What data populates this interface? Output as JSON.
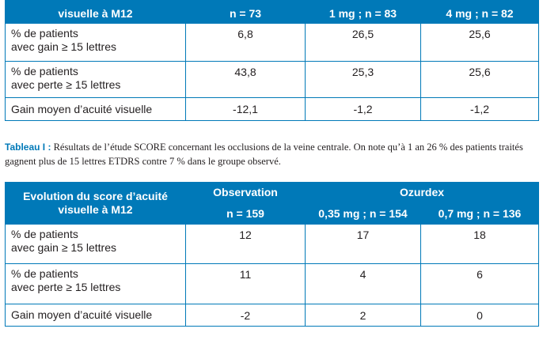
{
  "table1": {
    "header_label": "visuelle à M12",
    "n_cols": [
      "n = 73",
      "1 mg ; n = 83",
      "4 mg ; n = 82"
    ],
    "rows": [
      {
        "label1": "% de patients",
        "label2": "avec gain ≥ 15 lettres",
        "v": [
          "6,8",
          "26,5",
          "25,6"
        ]
      },
      {
        "label1": "% de patients",
        "label2": "avec perte ≥ 15 lettres",
        "v": [
          "43,8",
          "25,3",
          "25,6"
        ]
      },
      {
        "label1": "Gain moyen d’acuité visuelle",
        "v": [
          "-12,1",
          "-1,2",
          "-1,2"
        ]
      }
    ]
  },
  "caption": {
    "label": "Tableau I :",
    "text": "Résultats de l’étude SCORE concernant les occlusions de la veine centrale. On note qu’à 1 an 26 % des patients traités gagnent plus de 15 lettres ETDRS contre 7 % dans le groupe observé."
  },
  "table2": {
    "header_label": "Evolution du score d’acuité visuelle à M12",
    "group_observation": "Observation",
    "group_ozurdex": "Ozurdex",
    "n_cols": [
      "n = 159",
      "0,35 mg ; n = 154",
      "0,7 mg ; n = 136"
    ],
    "rows": [
      {
        "label1": "% de patients",
        "label2": "avec gain ≥ 15 lettres",
        "v": [
          "12",
          "17",
          "18"
        ]
      },
      {
        "label1": "% de patients",
        "label2": "avec perte ≥ 15 lettres",
        "v": [
          "11",
          "4",
          "6"
        ]
      },
      {
        "label1": "Gain moyen d’acuité visuelle",
        "v": [
          "-2",
          "2",
          "0"
        ]
      }
    ]
  }
}
